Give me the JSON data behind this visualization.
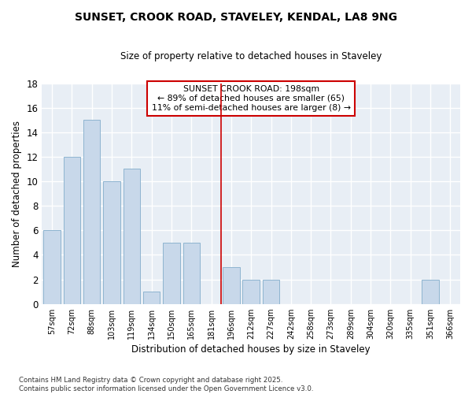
{
  "title": "SUNSET, CROOK ROAD, STAVELEY, KENDAL, LA8 9NG",
  "subtitle": "Size of property relative to detached houses in Staveley",
  "xlabel": "Distribution of detached houses by size in Staveley",
  "ylabel": "Number of detached properties",
  "categories": [
    "57sqm",
    "72sqm",
    "88sqm",
    "103sqm",
    "119sqm",
    "134sqm",
    "150sqm",
    "165sqm",
    "181sqm",
    "196sqm",
    "212sqm",
    "227sqm",
    "242sqm",
    "258sqm",
    "273sqm",
    "289sqm",
    "304sqm",
    "320sqm",
    "335sqm",
    "351sqm",
    "366sqm"
  ],
  "values": [
    6,
    12,
    15,
    10,
    11,
    1,
    5,
    5,
    0,
    3,
    2,
    2,
    0,
    0,
    0,
    0,
    0,
    0,
    0,
    2,
    0
  ],
  "bar_color": "#c8d8ea",
  "bar_edge_color": "#8eb4d0",
  "vline_index": 9,
  "vline_color": "#cc0000",
  "annotation_title": "SUNSET CROOK ROAD: 198sqm",
  "annotation_line1": "← 89% of detached houses are smaller (65)",
  "annotation_line2": "11% of semi-detached houses are larger (8) →",
  "annotation_box_color": "#ffffff",
  "annotation_box_edge": "#cc0000",
  "ylim": [
    0,
    18
  ],
  "yticks": [
    0,
    2,
    4,
    6,
    8,
    10,
    12,
    14,
    16,
    18
  ],
  "background_color": "#ffffff",
  "plot_background_color": "#e8eef5",
  "grid_color": "#ffffff",
  "footer": "Contains HM Land Registry data © Crown copyright and database right 2025.\nContains public sector information licensed under the Open Government Licence v3.0."
}
